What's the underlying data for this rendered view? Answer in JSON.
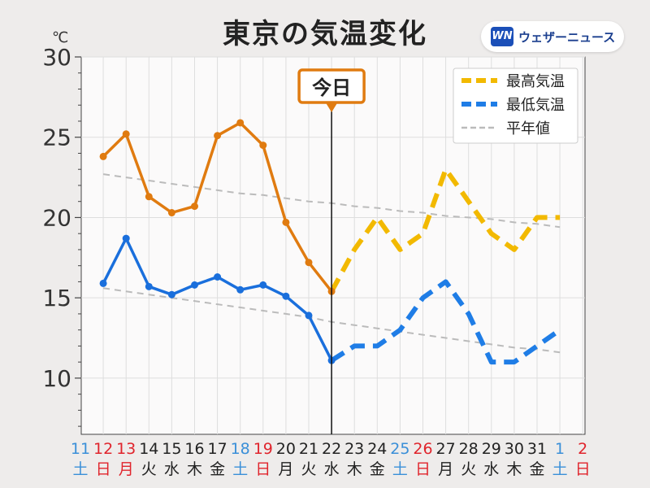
{
  "header": {
    "title": "東京の気温変化",
    "unit": "℃",
    "brand": "ウェザーニュース",
    "brand_logo": "WN"
  },
  "today_label": "今日",
  "legend": {
    "position": "top-right",
    "high": "最高気温",
    "low": "最低気温",
    "normal": "平年値"
  },
  "colors": {
    "high_observed": "#e07b10",
    "high_forecast": "#f2b900",
    "low_observed": "#1a6fdc",
    "low_forecast": "#1f7de6",
    "normal": "#bbbbbb",
    "saturday": "#3a8fd8",
    "sunday_holiday": "#e0242c",
    "weekday": "#222222"
  },
  "chart_data": {
    "type": "line",
    "title": "東京の気温変化",
    "ylabel": "℃",
    "ylim": [
      6.5,
      30
    ],
    "yticks": [
      10,
      15,
      20,
      25,
      30
    ],
    "grid": true,
    "today_index": 11,
    "x": [
      {
        "day": "11",
        "weekday": "土",
        "type": "sat"
      },
      {
        "day": "12",
        "weekday": "日",
        "type": "sun"
      },
      {
        "day": "13",
        "weekday": "月",
        "type": "sun"
      },
      {
        "day": "14",
        "weekday": "火",
        "type": "wd"
      },
      {
        "day": "15",
        "weekday": "水",
        "type": "wd"
      },
      {
        "day": "16",
        "weekday": "木",
        "type": "wd"
      },
      {
        "day": "17",
        "weekday": "金",
        "type": "wd"
      },
      {
        "day": "18",
        "weekday": "土",
        "type": "sat"
      },
      {
        "day": "19",
        "weekday": "日",
        "type": "sun"
      },
      {
        "day": "20",
        "weekday": "月",
        "type": "wd"
      },
      {
        "day": "21",
        "weekday": "火",
        "type": "wd"
      },
      {
        "day": "22",
        "weekday": "水",
        "type": "wd"
      },
      {
        "day": "23",
        "weekday": "木",
        "type": "wd"
      },
      {
        "day": "24",
        "weekday": "金",
        "type": "wd"
      },
      {
        "day": "25",
        "weekday": "土",
        "type": "sat"
      },
      {
        "day": "26",
        "weekday": "日",
        "type": "sun"
      },
      {
        "day": "27",
        "weekday": "月",
        "type": "wd"
      },
      {
        "day": "28",
        "weekday": "火",
        "type": "wd"
      },
      {
        "day": "29",
        "weekday": "水",
        "type": "wd"
      },
      {
        "day": "30",
        "weekday": "木",
        "type": "wd"
      },
      {
        "day": "31",
        "weekday": "金",
        "type": "wd"
      },
      {
        "day": "1",
        "weekday": "土",
        "type": "sat"
      },
      {
        "day": "2",
        "weekday": "日",
        "type": "sun"
      }
    ],
    "series": [
      {
        "name": "最高気温",
        "kind": "high_observed",
        "values": [
          null,
          23.8,
          25.2,
          21.3,
          20.3,
          20.7,
          25.1,
          25.9,
          24.5,
          19.7,
          17.2,
          15.4,
          null,
          null,
          null,
          null,
          null,
          null,
          null,
          null,
          null,
          null,
          null
        ]
      },
      {
        "name": "最高気温",
        "kind": "high_forecast",
        "values": [
          null,
          null,
          null,
          null,
          null,
          null,
          null,
          null,
          null,
          null,
          null,
          15.4,
          18,
          20,
          18,
          19,
          23,
          21,
          19,
          18,
          20,
          20,
          null
        ]
      },
      {
        "name": "最低気温",
        "kind": "low_observed",
        "values": [
          null,
          15.9,
          18.7,
          15.7,
          15.2,
          15.8,
          16.3,
          15.5,
          15.8,
          15.1,
          13.9,
          11.1,
          null,
          null,
          null,
          null,
          null,
          null,
          null,
          null,
          null,
          null,
          null
        ]
      },
      {
        "name": "最低気温",
        "kind": "low_forecast",
        "values": [
          null,
          null,
          null,
          null,
          null,
          null,
          null,
          null,
          null,
          null,
          null,
          11.1,
          12,
          12,
          13,
          15,
          16,
          14,
          11,
          11,
          12,
          13,
          null
        ]
      },
      {
        "name": "平年値",
        "kind": "normal_high",
        "values": [
          null,
          22.7,
          22.5,
          22.3,
          22.1,
          21.9,
          21.7,
          21.5,
          21.4,
          21.2,
          21.0,
          20.9,
          20.7,
          20.6,
          20.4,
          20.3,
          20.1,
          20.0,
          19.9,
          19.7,
          19.6,
          19.4,
          null
        ]
      },
      {
        "name": "平年値",
        "kind": "normal_low",
        "values": [
          null,
          15.6,
          15.4,
          15.2,
          15.0,
          14.8,
          14.6,
          14.4,
          14.2,
          14.0,
          13.8,
          13.5,
          13.3,
          13.1,
          12.9,
          12.7,
          12.5,
          12.3,
          12.1,
          11.9,
          11.8,
          11.6,
          null
        ]
      }
    ]
  }
}
